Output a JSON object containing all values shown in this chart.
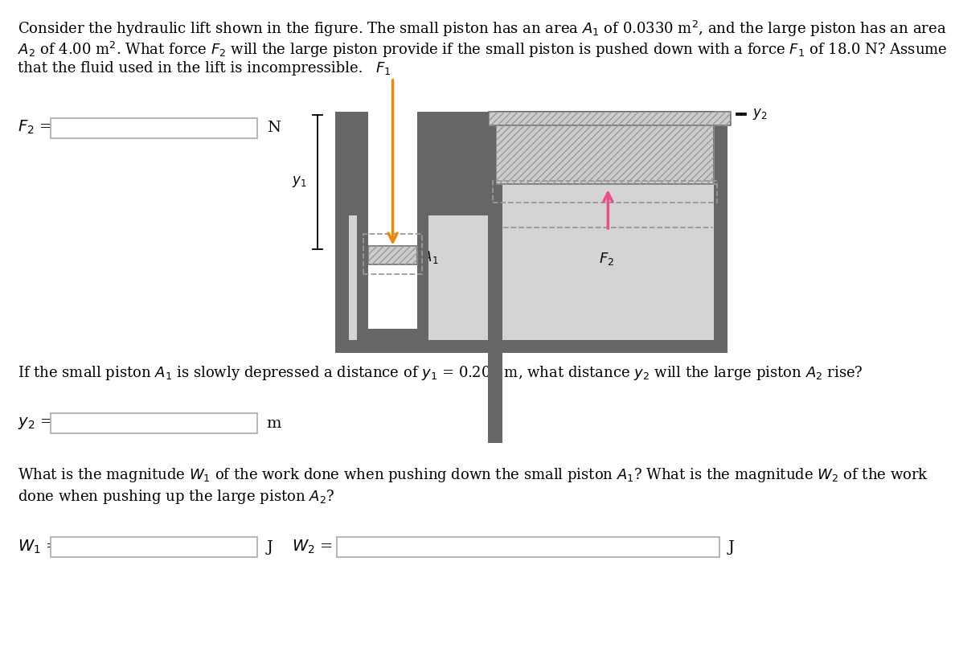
{
  "bg_color": "#ffffff",
  "text_color": "#000000",
  "title_line1": "Consider the hydraulic lift shown in the figure. The small piston has an area $A_1$ of 0.0330 m$^2$, and the large piston has an area",
  "title_line2": "$A_2$ of 4.00 m$^2$. What force $F_2$ will the large piston provide if the small piston is pushed down with a force $F_1$ of 18.0 N? Assume",
  "title_line3": "that the fluid used in the lift is incompressible.",
  "q2_line1": "If the small piston $A_1$ is slowly depressed a distance of $y_1$ = 0.200 m, what distance $y_2$ will the large piston $A_2$ rise?",
  "q3_line1": "What is the magnitude $W_1$ of the work done when pushing down the small piston $A_1$? What is the magnitude $W_2$ of the work",
  "q3_line2": "done when pushing up the large piston $A_2$?",
  "label_F2eq": "$F_2$ =",
  "label_N": "N",
  "label_y2eq": "$y_2$ =",
  "label_m": "m",
  "label_W1eq": "$W_1$ =",
  "label_J1": "J",
  "label_W2eq": "$W_2$ =",
  "label_J2": "J",
  "color_orange": "#E8890C",
  "color_pink": "#E8508A",
  "color_dark": "#666666",
  "color_medium": "#999999",
  "color_light": "#cccccc",
  "color_fluid": "#d4d4d4",
  "color_box_edge": "#aaaaaa",
  "color_white": "#ffffff",
  "fs_text": 13.0,
  "fs_label": 13.0
}
